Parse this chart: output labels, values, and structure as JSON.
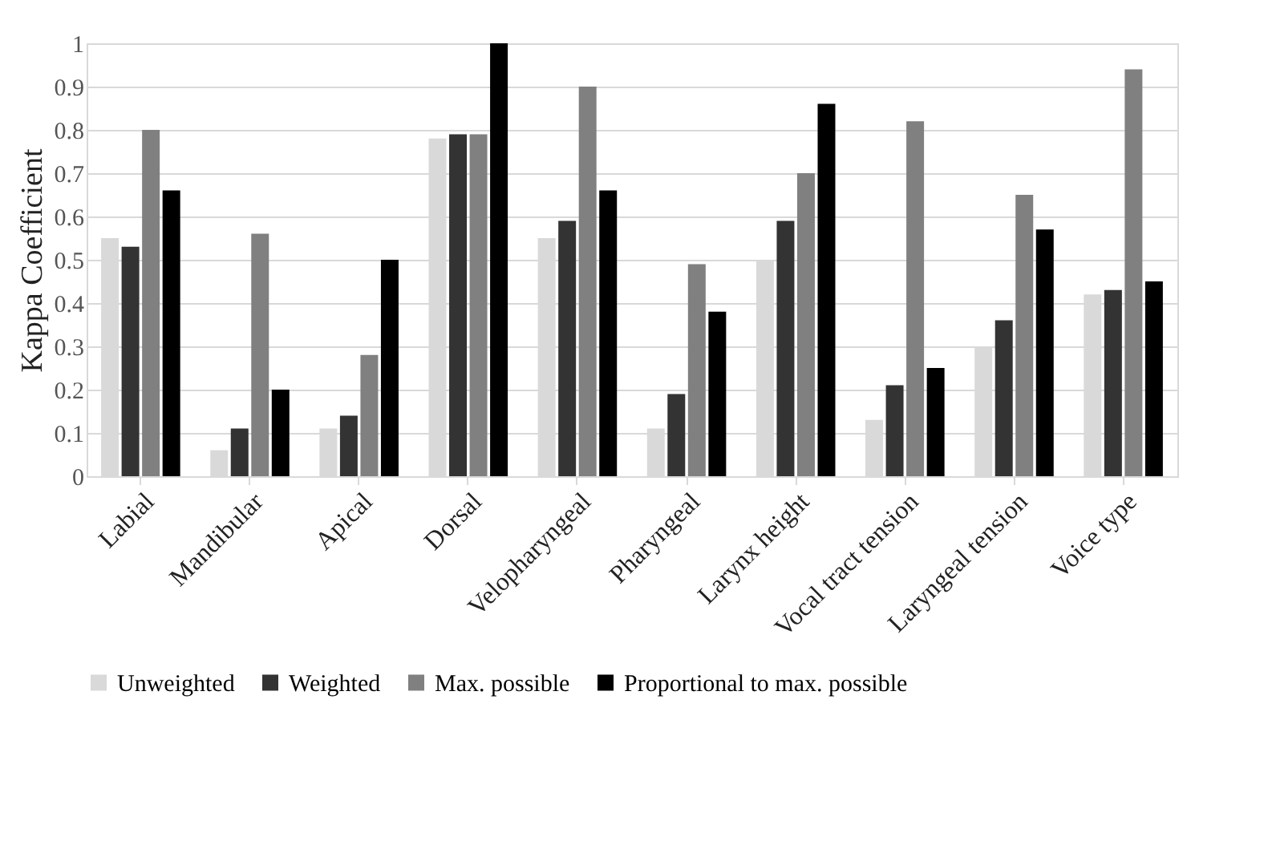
{
  "chart_data": {
    "type": "bar",
    "ylabel": "Kappa Coefficient",
    "categories": [
      "Labial",
      "Mandibular",
      "Apical",
      "Dorsal",
      "Velopharyngeal",
      "Pharyngeal",
      "Larynx height",
      "Vocal tract tension",
      "Laryngeal tension",
      "Voice type"
    ],
    "series": [
      {
        "name": "Unweighted",
        "color": "#d9d9d9",
        "values": [
          0.55,
          0.06,
          0.11,
          0.78,
          0.55,
          0.11,
          0.5,
          0.13,
          0.3,
          0.42
        ]
      },
      {
        "name": "Weighted",
        "color": "#333333",
        "values": [
          0.53,
          0.11,
          0.14,
          0.79,
          0.59,
          0.19,
          0.59,
          0.21,
          0.36,
          0.43
        ]
      },
      {
        "name": "Max. possible",
        "color": "#808080",
        "values": [
          0.8,
          0.56,
          0.28,
          0.79,
          0.9,
          0.49,
          0.7,
          0.82,
          0.65,
          0.94
        ]
      },
      {
        "name": "Proportional to max. possible",
        "color": "#000000",
        "values": [
          0.66,
          0.2,
          0.5,
          1.0,
          0.66,
          0.38,
          0.86,
          0.25,
          0.57,
          0.45
        ]
      }
    ],
    "ylim": [
      0,
      1
    ],
    "yticks": [
      0,
      0.1,
      0.2,
      0.3,
      0.4,
      0.5,
      0.6,
      0.7,
      0.8,
      0.9,
      1
    ],
    "grid": "y",
    "legend": "bottom"
  }
}
